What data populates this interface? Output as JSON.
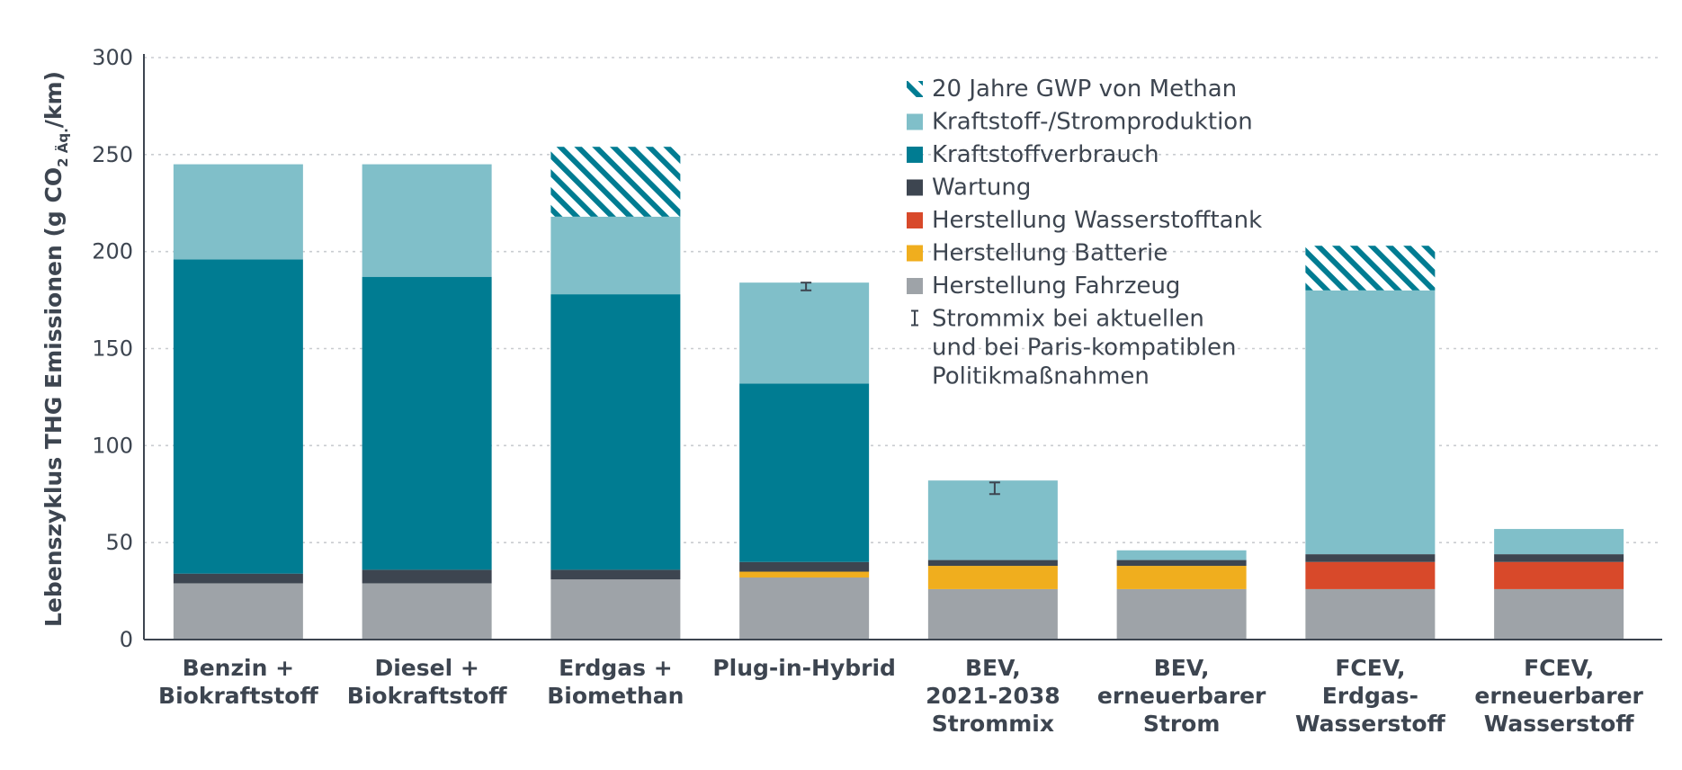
{
  "chart_data": {
    "type": "bar",
    "stacked": true,
    "ylabel_main": "Lebenszyklus THG Emissionen (g CO",
    "ylabel_sub": "2 Äq.",
    "ylabel_end": "/km)",
    "ylim": [
      0,
      300
    ],
    "yticks": [
      0,
      50,
      100,
      150,
      200,
      250,
      300
    ],
    "grid": true,
    "legend_position": "top-center",
    "categories": [
      [
        "Benzin +",
        "Biokraftstoff"
      ],
      [
        "Diesel +",
        "Biokraftstoff"
      ],
      [
        "Erdgas +",
        "Biomethan"
      ],
      [
        "Plug-in-Hybrid"
      ],
      [
        "BEV,",
        "2021-2038",
        "Strommix"
      ],
      [
        "BEV,",
        "erneuerbarer",
        "Strom"
      ],
      [
        "FCEV,",
        "Erdgas-",
        "Wasserstoff"
      ],
      [
        "FCEV,",
        "erneuerbarer",
        "Wasserstoff"
      ]
    ],
    "series": [
      {
        "name": "Herstellung Fahrzeug",
        "color": "#9ea3a8",
        "pattern": "solid",
        "values": [
          29,
          29,
          31,
          32,
          26,
          26,
          26,
          26
        ]
      },
      {
        "name": "Herstellung Batterie",
        "color": "#f0ae1e",
        "pattern": "solid",
        "values": [
          0,
          0,
          0,
          3,
          12,
          12,
          0,
          0
        ]
      },
      {
        "name": "Herstellung Wasserstofftank",
        "color": "#d8492a",
        "pattern": "solid",
        "values": [
          0,
          0,
          0,
          0,
          0,
          0,
          14,
          14
        ]
      },
      {
        "name": "Wartung",
        "color": "#3d4550",
        "pattern": "solid",
        "values": [
          5,
          7,
          5,
          5,
          3,
          3,
          4,
          4
        ]
      },
      {
        "name": "Kraftstoffverbrauch",
        "color": "#007c92",
        "pattern": "solid",
        "values": [
          162,
          151,
          142,
          92,
          0,
          0,
          0,
          0
        ]
      },
      {
        "name": "Kraftstoff-/Stromproduktion",
        "color": "#80bfc9",
        "pattern": "solid",
        "values": [
          49,
          58,
          40,
          52,
          41,
          5,
          136,
          13
        ]
      },
      {
        "name": "20 Jahre GWP von Methan",
        "color": "#007c92",
        "pattern": "hatch",
        "values": [
          0,
          0,
          36,
          0,
          0,
          0,
          23,
          0
        ]
      }
    ],
    "legend_order": [
      "20 Jahre GWP von Methan",
      "Kraftstoff-/Stromproduktion",
      "Kraftstoffverbrauch",
      "Wartung",
      "Herstellung Wasserstofftank",
      "Herstellung Batterie",
      "Herstellung Fahrzeug"
    ],
    "error_bars": [
      {
        "category_index": 3,
        "low": 180,
        "high": 184
      },
      {
        "category_index": 4,
        "low": 75,
        "high": 81
      }
    ],
    "error_legend": [
      "Strommix bei aktuellen",
      "und bei Paris-kompatiblen",
      "Politikmaßnahmen"
    ]
  }
}
